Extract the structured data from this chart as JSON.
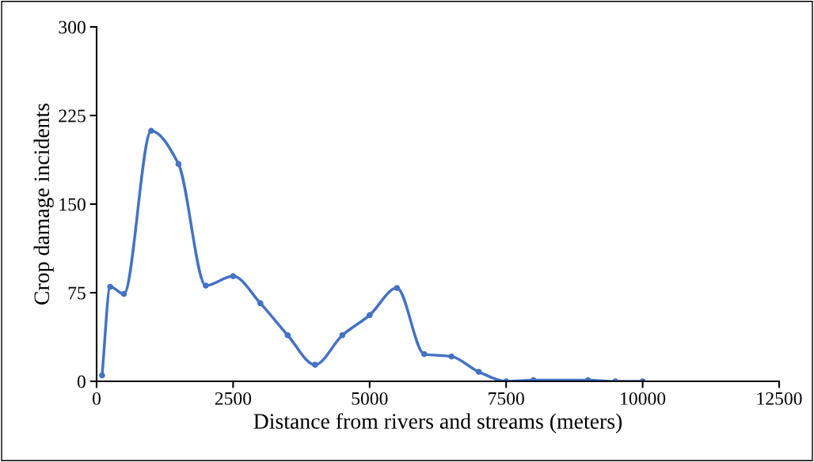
{
  "chart_data": {
    "type": "line",
    "xlabel": "Distance from rivers and streams (meters)",
    "ylabel": "Crop damage incidents",
    "x": [
      100,
      250,
      500,
      1000,
      1500,
      2000,
      2500,
      3000,
      3500,
      4000,
      4500,
      5000,
      5500,
      6000,
      6500,
      7000,
      7500,
      8000,
      9000,
      9500,
      10000
    ],
    "series": [
      {
        "color": "#4472c4",
        "values": [
          5,
          80,
          74,
          212,
          184,
          81,
          89,
          66,
          39,
          14,
          39,
          56,
          79,
          23,
          21,
          8,
          0,
          1,
          1,
          0,
          0
        ]
      }
    ],
    "xlim": [
      0,
      12500
    ],
    "xticks": [
      0,
      2500,
      5000,
      7500,
      10000,
      12500
    ],
    "ylim": [
      0,
      300
    ],
    "yticks": [
      0,
      75,
      150,
      225,
      300
    ],
    "grid": false,
    "marker": "circle",
    "line_style": "solid"
  }
}
